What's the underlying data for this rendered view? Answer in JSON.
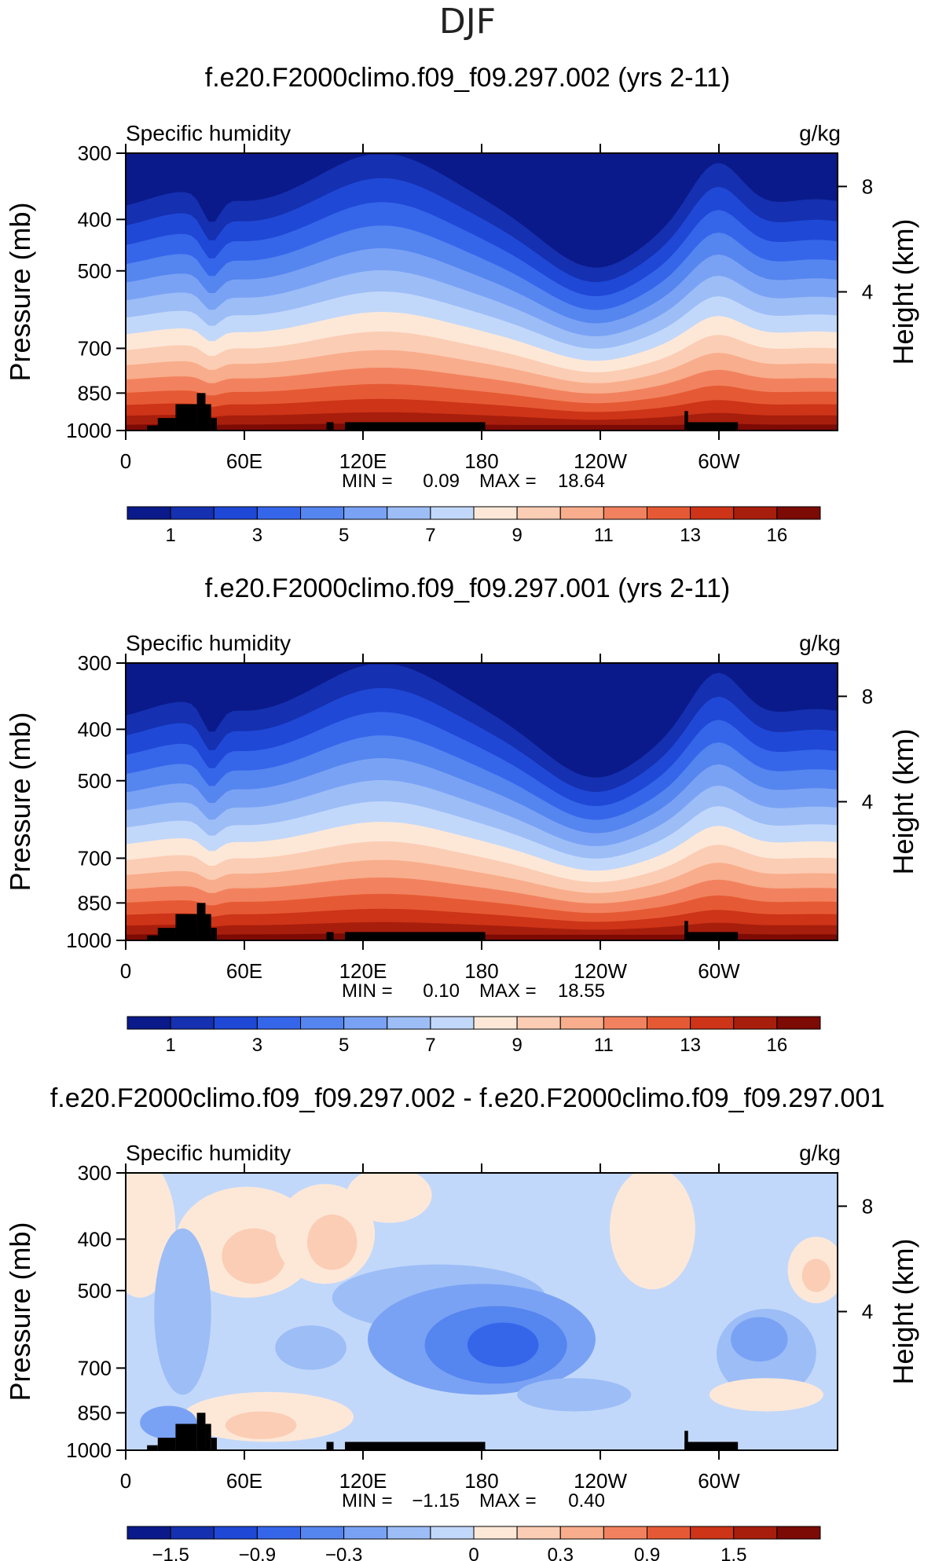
{
  "page": {
    "title": "DJF"
  },
  "colorbar_seq": {
    "colors": [
      "#0a1a8a",
      "#1530b0",
      "#1f48d6",
      "#3566ea",
      "#5585ef",
      "#7aa2f4",
      "#9dbdf7",
      "#c2d8fa",
      "#fde8d8",
      "#fbcdb4",
      "#f8ad8c",
      "#f2825f",
      "#e55a34",
      "#cd3418",
      "#a81e0c",
      "#7c0a05"
    ],
    "labels": [
      "1",
      "3",
      "5",
      "7",
      "9",
      "11",
      "13",
      "16"
    ]
  },
  "colorbar_diff": {
    "colors": [
      "#0a1a8a",
      "#1530b0",
      "#1f48d6",
      "#3566ea",
      "#5585ef",
      "#7aa2f4",
      "#9dbdf7",
      "#c2d8fa",
      "#fde8d8",
      "#fbcdb4",
      "#f8ad8c",
      "#f2825f",
      "#e55a34",
      "#cd3418",
      "#a81e0c",
      "#7c0a05"
    ],
    "labels": [
      "−1.5",
      "−0.9",
      "−0.3",
      "0",
      "0.3",
      "0.9",
      "1.5"
    ]
  },
  "chart_data": [
    {
      "type": "heatmap",
      "title": "f.e20.F2000climo.f09_f09.297.002 (yrs 2-11)",
      "left_label": "Specific humidity",
      "right_label": "g/kg",
      "ylabel": "Pressure (mb)",
      "ylabel_right": "Height (km)",
      "xticks": [
        "0",
        "60E",
        "120E",
        "180",
        "120W",
        "60W"
      ],
      "yticks": [
        "300",
        "400",
        "500",
        "700",
        "850",
        "1000"
      ],
      "yticks_right": [
        "8",
        "4"
      ],
      "stats": {
        "min_label": "MIN =",
        "min": "0.09",
        "max_label": "MAX =",
        "max": "18.64"
      },
      "contour_levels": [
        1,
        2,
        3,
        4,
        5,
        6,
        7,
        8,
        9,
        10,
        11,
        12,
        13,
        14,
        16,
        18
      ]
    },
    {
      "type": "heatmap",
      "title": "f.e20.F2000climo.f09_f09.297.001 (yrs 2-11)",
      "left_label": "Specific humidity",
      "right_label": "g/kg",
      "ylabel": "Pressure (mb)",
      "ylabel_right": "Height (km)",
      "xticks": [
        "0",
        "60E",
        "120E",
        "180",
        "120W",
        "60W"
      ],
      "yticks": [
        "300",
        "400",
        "500",
        "700",
        "850",
        "1000"
      ],
      "yticks_right": [
        "8",
        "4"
      ],
      "stats": {
        "min_label": "MIN =",
        "min": "0.10",
        "max_label": "MAX =",
        "max": "18.55"
      },
      "contour_levels": [
        1,
        2,
        3,
        4,
        5,
        6,
        7,
        8,
        9,
        10,
        11,
        12,
        13,
        14,
        16,
        18
      ]
    },
    {
      "type": "heatmap",
      "title": "f.e20.F2000climo.f09_f09.297.002 - f.e20.F2000climo.f09_f09.297.001",
      "left_label": "Specific humidity",
      "right_label": "g/kg",
      "ylabel": "Pressure (mb)",
      "ylabel_right": "Height (km)",
      "xticks": [
        "0",
        "60E",
        "120E",
        "180",
        "120W",
        "60W"
      ],
      "yticks": [
        "300",
        "400",
        "500",
        "700",
        "850",
        "1000"
      ],
      "yticks_right": [
        "8",
        "4"
      ],
      "stats": {
        "min_label": "MIN =",
        "min": "−1.15",
        "max_label": "MAX =",
        "max": "0.40"
      },
      "contour_levels": [
        -1.5,
        -1.2,
        -0.9,
        -0.6,
        -0.3,
        0,
        0.3,
        0.6,
        0.9,
        1.2,
        1.5
      ]
    }
  ]
}
